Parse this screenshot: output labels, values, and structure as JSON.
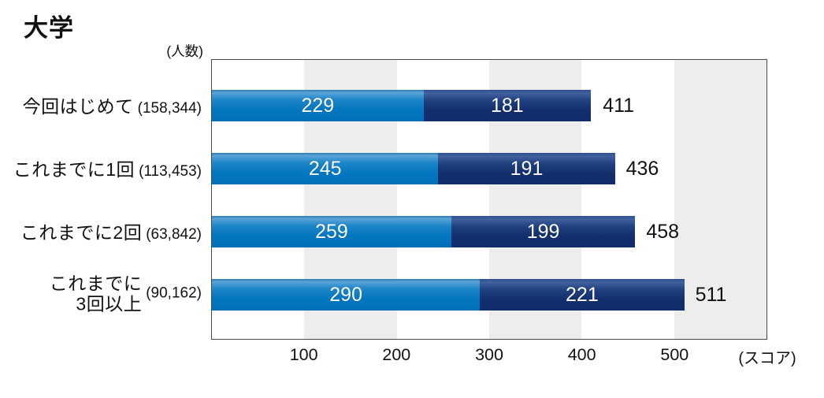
{
  "title": "大学",
  "unit_label": "(人数)",
  "score_label": "(スコア)",
  "colors": {
    "segment_light_blue": "#0477c1",
    "segment_dark_navy": "#16336f",
    "stripe_gray": "#ededed",
    "plot_border": "#4a4a4a",
    "value_text": "#ffffff",
    "text": "#111111"
  },
  "chart_data": {
    "type": "bar",
    "orientation": "horizontal",
    "stacked": true,
    "title": "大学",
    "xlabel": "(スコア)",
    "ylabel": "(人数)",
    "xlim": [
      0,
      600
    ],
    "xticks": [
      100,
      200,
      300,
      400,
      500
    ],
    "background_bands": [
      [
        100,
        200
      ],
      [
        300,
        400
      ],
      [
        500,
        600
      ]
    ],
    "legend": "none",
    "categories": [
      "今回はじめて",
      "これまでに1回",
      "これまでに2回",
      "これまでに3回以上"
    ],
    "rows": [
      {
        "label_lines": [
          "今回はじめて"
        ],
        "count": "(158,344)",
        "segments": [
          229,
          181
        ],
        "total": 411
      },
      {
        "label_lines": [
          "これまでに1回"
        ],
        "count": "(113,453)",
        "segments": [
          245,
          191
        ],
        "total": 436
      },
      {
        "label_lines": [
          "これまでに2回"
        ],
        "count": "(63,842)",
        "segments": [
          259,
          199
        ],
        "total": 458
      },
      {
        "label_lines": [
          "これまでに",
          "3回以上"
        ],
        "count": "(90,162)",
        "segments": [
          290,
          221
        ],
        "total": 511
      }
    ]
  }
}
